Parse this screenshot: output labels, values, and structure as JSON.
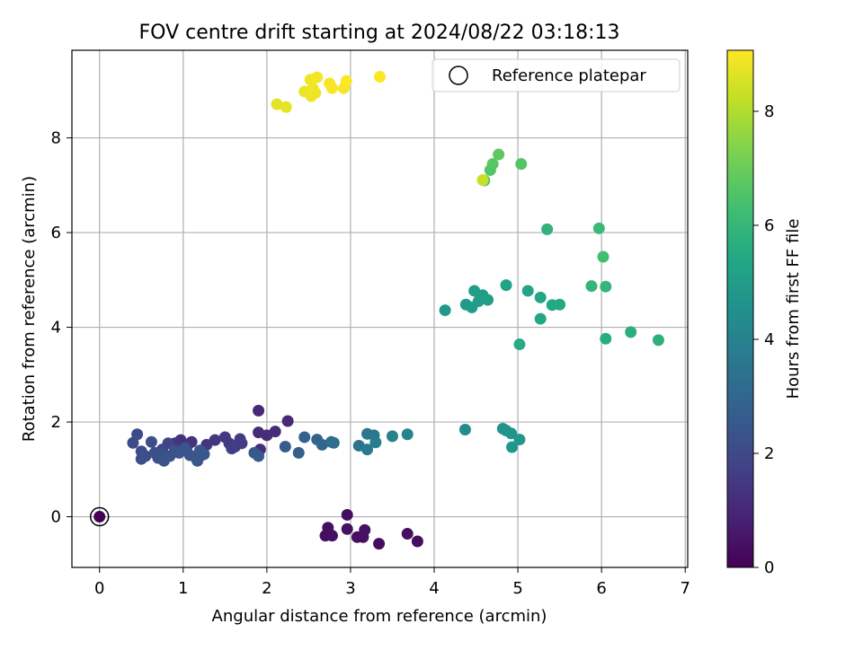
{
  "chart_data": {
    "type": "scatter",
    "title": "FOV centre drift starting at 2024/08/22 03:18:13",
    "xlabel": "Angular distance from reference (arcmin)",
    "ylabel": "Rotation from reference (arcmin)",
    "xlim": [
      -0.33,
      7.03
    ],
    "ylim": [
      -1.07,
      9.85
    ],
    "xticks": [
      0,
      1,
      2,
      3,
      4,
      5,
      6,
      7
    ],
    "yticks": [
      0,
      2,
      4,
      6,
      8
    ],
    "grid": true,
    "legend": {
      "placement": "top-right",
      "entries": [
        {
          "label": "Reference platepar",
          "marker": "open-circle"
        }
      ]
    },
    "colorbar": {
      "label": "Hours from first FF file",
      "range": [
        0,
        9.07
      ],
      "ticks": [
        0,
        2,
        4,
        6,
        8
      ],
      "colormap": "viridis"
    },
    "reference_point": {
      "x": 0,
      "y": 0
    },
    "points": [
      {
        "x": 2.96,
        "y": 0.04,
        "c": 0.3
      },
      {
        "x": 2.73,
        "y": -0.23,
        "c": 0.35
      },
      {
        "x": 2.7,
        "y": -0.4,
        "c": 0.3
      },
      {
        "x": 2.78,
        "y": -0.4,
        "c": 0.35
      },
      {
        "x": 2.96,
        "y": -0.26,
        "c": 0.4
      },
      {
        "x": 3.08,
        "y": -0.43,
        "c": 0.4
      },
      {
        "x": 3.15,
        "y": -0.43,
        "c": 0.35
      },
      {
        "x": 3.17,
        "y": -0.28,
        "c": 0.4
      },
      {
        "x": 3.34,
        "y": -0.57,
        "c": 0.3
      },
      {
        "x": 3.68,
        "y": -0.36,
        "c": 0.35
      },
      {
        "x": 3.8,
        "y": -0.52,
        "c": 0.3
      },
      {
        "x": 1.9,
        "y": 2.24,
        "c": 1.0
      },
      {
        "x": 2.25,
        "y": 2.02,
        "c": 1.05
      },
      {
        "x": 1.9,
        "y": 1.78,
        "c": 1.1
      },
      {
        "x": 2.0,
        "y": 1.72,
        "c": 1.15
      },
      {
        "x": 2.1,
        "y": 1.8,
        "c": 1.1
      },
      {
        "x": 1.92,
        "y": 1.42,
        "c": 1.2
      },
      {
        "x": 0.97,
        "y": 1.62,
        "c": 1.3
      },
      {
        "x": 1.1,
        "y": 1.58,
        "c": 1.3
      },
      {
        "x": 0.9,
        "y": 1.55,
        "c": 1.35
      },
      {
        "x": 1.05,
        "y": 1.5,
        "c": 1.4
      },
      {
        "x": 1.28,
        "y": 1.52,
        "c": 1.4
      },
      {
        "x": 1.38,
        "y": 1.62,
        "c": 1.45
      },
      {
        "x": 1.5,
        "y": 1.68,
        "c": 1.5
      },
      {
        "x": 1.55,
        "y": 1.55,
        "c": 1.5
      },
      {
        "x": 1.62,
        "y": 1.48,
        "c": 1.55
      },
      {
        "x": 1.68,
        "y": 1.64,
        "c": 1.6
      },
      {
        "x": 1.7,
        "y": 1.55,
        "c": 1.6
      },
      {
        "x": 1.58,
        "y": 1.44,
        "c": 1.65
      },
      {
        "x": 1.22,
        "y": 1.3,
        "c": 1.7
      },
      {
        "x": 0.82,
        "y": 1.55,
        "c": 1.8
      },
      {
        "x": 0.75,
        "y": 1.42,
        "c": 1.9
      },
      {
        "x": 1.15,
        "y": 1.25,
        "c": 1.9
      },
      {
        "x": 0.4,
        "y": 1.56,
        "c": 2.0
      },
      {
        "x": 0.45,
        "y": 1.74,
        "c": 2.05
      },
      {
        "x": 0.5,
        "y": 1.38,
        "c": 2.1
      },
      {
        "x": 0.55,
        "y": 1.28,
        "c": 2.1
      },
      {
        "x": 0.5,
        "y": 1.22,
        "c": 2.15
      },
      {
        "x": 0.62,
        "y": 1.58,
        "c": 2.2
      },
      {
        "x": 0.66,
        "y": 1.35,
        "c": 2.2
      },
      {
        "x": 0.7,
        "y": 1.24,
        "c": 2.25
      },
      {
        "x": 0.74,
        "y": 1.33,
        "c": 2.25
      },
      {
        "x": 0.77,
        "y": 1.18,
        "c": 2.3
      },
      {
        "x": 0.84,
        "y": 1.28,
        "c": 2.3
      },
      {
        "x": 0.9,
        "y": 1.4,
        "c": 2.35
      },
      {
        "x": 0.95,
        "y": 1.35,
        "c": 2.35
      },
      {
        "x": 1.02,
        "y": 1.45,
        "c": 2.4
      },
      {
        "x": 1.08,
        "y": 1.3,
        "c": 2.4
      },
      {
        "x": 1.17,
        "y": 1.18,
        "c": 2.45
      },
      {
        "x": 1.2,
        "y": 1.4,
        "c": 2.45
      },
      {
        "x": 1.25,
        "y": 1.32,
        "c": 2.5
      },
      {
        "x": 1.85,
        "y": 1.35,
        "c": 2.5
      },
      {
        "x": 1.9,
        "y": 1.28,
        "c": 2.55
      },
      {
        "x": 2.22,
        "y": 1.48,
        "c": 2.6
      },
      {
        "x": 2.38,
        "y": 1.35,
        "c": 2.7
      },
      {
        "x": 2.45,
        "y": 1.68,
        "c": 2.8
      },
      {
        "x": 2.6,
        "y": 1.63,
        "c": 2.9
      },
      {
        "x": 2.66,
        "y": 1.52,
        "c": 3.0
      },
      {
        "x": 2.77,
        "y": 1.58,
        "c": 3.2
      },
      {
        "x": 2.8,
        "y": 1.56,
        "c": 3.3
      },
      {
        "x": 3.1,
        "y": 1.5,
        "c": 3.5
      },
      {
        "x": 3.2,
        "y": 1.75,
        "c": 3.6
      },
      {
        "x": 3.28,
        "y": 1.72,
        "c": 3.6
      },
      {
        "x": 3.2,
        "y": 1.42,
        "c": 3.7
      },
      {
        "x": 3.3,
        "y": 1.57,
        "c": 3.8
      },
      {
        "x": 3.5,
        "y": 1.7,
        "c": 4.0
      },
      {
        "x": 3.68,
        "y": 1.74,
        "c": 4.1
      },
      {
        "x": 4.37,
        "y": 1.84,
        "c": 4.3
      },
      {
        "x": 4.82,
        "y": 1.86,
        "c": 4.6
      },
      {
        "x": 4.86,
        "y": 1.82,
        "c": 4.65
      },
      {
        "x": 4.92,
        "y": 1.76,
        "c": 4.7
      },
      {
        "x": 4.93,
        "y": 1.47,
        "c": 4.75
      },
      {
        "x": 5.02,
        "y": 1.63,
        "c": 4.8
      },
      {
        "x": 4.13,
        "y": 4.36,
        "c": 4.8
      },
      {
        "x": 4.38,
        "y": 4.48,
        "c": 4.9
      },
      {
        "x": 4.45,
        "y": 4.42,
        "c": 4.95
      },
      {
        "x": 4.48,
        "y": 4.77,
        "c": 5.0
      },
      {
        "x": 4.53,
        "y": 4.55,
        "c": 5.0
      },
      {
        "x": 4.58,
        "y": 4.68,
        "c": 5.05
      },
      {
        "x": 4.64,
        "y": 4.58,
        "c": 5.1
      },
      {
        "x": 4.86,
        "y": 4.89,
        "c": 5.2
      },
      {
        "x": 5.12,
        "y": 4.77,
        "c": 5.3
      },
      {
        "x": 5.27,
        "y": 4.63,
        "c": 5.35
      },
      {
        "x": 5.27,
        "y": 4.18,
        "c": 5.4
      },
      {
        "x": 5.41,
        "y": 4.47,
        "c": 5.45
      },
      {
        "x": 5.5,
        "y": 4.48,
        "c": 5.5
      },
      {
        "x": 5.02,
        "y": 3.64,
        "c": 5.55
      },
      {
        "x": 5.88,
        "y": 4.87,
        "c": 5.9
      },
      {
        "x": 6.05,
        "y": 4.86,
        "c": 5.95
      },
      {
        "x": 6.05,
        "y": 3.76,
        "c": 5.6
      },
      {
        "x": 6.35,
        "y": 3.9,
        "c": 5.7
      },
      {
        "x": 6.68,
        "y": 3.73,
        "c": 5.75
      },
      {
        "x": 5.35,
        "y": 6.07,
        "c": 5.85
      },
      {
        "x": 5.97,
        "y": 6.09,
        "c": 6.1
      },
      {
        "x": 6.02,
        "y": 5.49,
        "c": 6.3
      },
      {
        "x": 4.6,
        "y": 7.1,
        "c": 6.5
      },
      {
        "x": 4.67,
        "y": 7.32,
        "c": 6.6
      },
      {
        "x": 4.7,
        "y": 7.45,
        "c": 6.7
      },
      {
        "x": 4.77,
        "y": 7.65,
        "c": 6.8
      },
      {
        "x": 5.04,
        "y": 7.45,
        "c": 6.6
      },
      {
        "x": 4.58,
        "y": 7.11,
        "c": 8.3
      },
      {
        "x": 2.12,
        "y": 8.71,
        "c": 8.7
      },
      {
        "x": 2.23,
        "y": 8.65,
        "c": 8.75
      },
      {
        "x": 2.45,
        "y": 8.98,
        "c": 8.8
      },
      {
        "x": 2.53,
        "y": 8.88,
        "c": 8.85
      },
      {
        "x": 2.58,
        "y": 8.95,
        "c": 8.85
      },
      {
        "x": 2.55,
        "y": 9.05,
        "c": 8.9
      },
      {
        "x": 2.52,
        "y": 9.23,
        "c": 8.9
      },
      {
        "x": 2.6,
        "y": 9.28,
        "c": 8.95
      },
      {
        "x": 2.75,
        "y": 9.15,
        "c": 9.0
      },
      {
        "x": 2.78,
        "y": 9.05,
        "c": 9.0
      },
      {
        "x": 2.92,
        "y": 9.05,
        "c": 9.0
      },
      {
        "x": 2.95,
        "y": 9.2,
        "c": 9.05
      },
      {
        "x": 3.35,
        "y": 9.29,
        "c": 9.05
      }
    ]
  }
}
